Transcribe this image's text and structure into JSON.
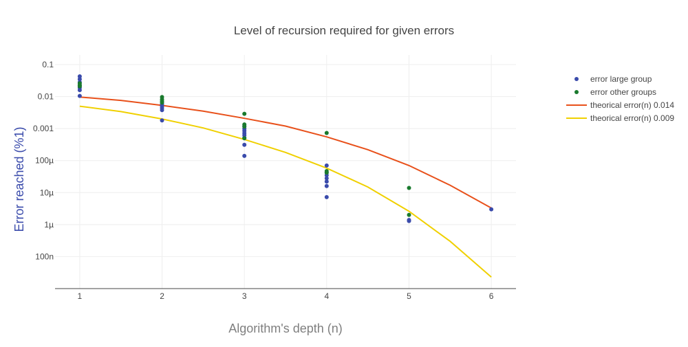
{
  "chart_data": {
    "type": "scatter",
    "title": "Level of recursion required for given errors",
    "xlabel": "Algorithm's depth (n)",
    "ylabel": "Error reached (%1)",
    "x_ticks": [
      1,
      2,
      3,
      4,
      5,
      6
    ],
    "x_tick_labels": [
      "1",
      "2",
      "3",
      "4",
      "5",
      "6"
    ],
    "xlim": [
      0.7,
      6.3
    ],
    "y_scale": "log",
    "ylim": [
      1e-08,
      0.2
    ],
    "y_ticks": [
      1e-07,
      1e-06,
      1e-05,
      0.0001,
      0.001,
      0.01,
      0.1
    ],
    "y_tick_labels": [
      "100n",
      "1µ",
      "10µ",
      "100µ",
      "0.001",
      "0.01",
      "0.1"
    ],
    "grid": true,
    "legend_position": "top-right",
    "series": [
      {
        "name": "error large group",
        "mode": "markers",
        "color": "#3a4bab",
        "x": [
          1,
          1,
          1,
          1,
          1,
          1,
          1,
          2,
          2,
          2,
          2,
          2,
          3,
          3,
          3,
          3,
          3,
          3,
          3,
          3,
          4,
          4,
          4,
          4,
          4,
          4,
          4,
          5,
          5,
          6
        ],
        "y": [
          0.043,
          0.035,
          0.028,
          0.022,
          0.019,
          0.016,
          0.0105,
          0.0058,
          0.005,
          0.0044,
          0.0038,
          0.0018,
          0.0012,
          0.001,
          0.00085,
          0.00072,
          0.00062,
          0.00052,
          0.00031,
          0.00014,
          7e-05,
          4.2e-05,
          3.5e-05,
          2.8e-05,
          2.2e-05,
          1.6e-05,
          7.2e-06,
          1.4e-06,
          1.3e-06,
          3e-06
        ]
      },
      {
        "name": "error other groups",
        "mode": "markers",
        "color": "#1a7a2e",
        "x": [
          1,
          1,
          1,
          2,
          2,
          2,
          2,
          3,
          3,
          3,
          3,
          4,
          4,
          4,
          5,
          5
        ],
        "y": [
          0.026,
          0.023,
          0.021,
          0.0097,
          0.0082,
          0.0072,
          0.0065,
          0.0029,
          0.00135,
          0.00115,
          0.0005,
          0.00073,
          4.7e-05,
          4.2e-05,
          1.4e-05,
          2e-06
        ]
      },
      {
        "name": "theorical error(n) 0.014",
        "mode": "line",
        "color": "#e8501a",
        "x": [
          1,
          1.5,
          2,
          2.5,
          3,
          3.5,
          4,
          4.5,
          5,
          5.5,
          6
        ],
        "y": [
          0.0097,
          0.0076,
          0.0053,
          0.0035,
          0.0021,
          0.0012,
          0.00055,
          0.00022,
          7e-05,
          1.7e-05,
          3.3e-06
        ]
      },
      {
        "name": "theorical error(n) 0.009",
        "mode": "line",
        "color": "#f0d000",
        "x": [
          1,
          1.5,
          2,
          2.5,
          3,
          3.5,
          4,
          4.5,
          5,
          5.5,
          6
        ],
        "y": [
          0.005,
          0.0034,
          0.002,
          0.00105,
          0.00046,
          0.00018,
          5.8e-05,
          1.5e-05,
          2.6e-06,
          3e-07,
          2.3e-08
        ]
      }
    ]
  }
}
